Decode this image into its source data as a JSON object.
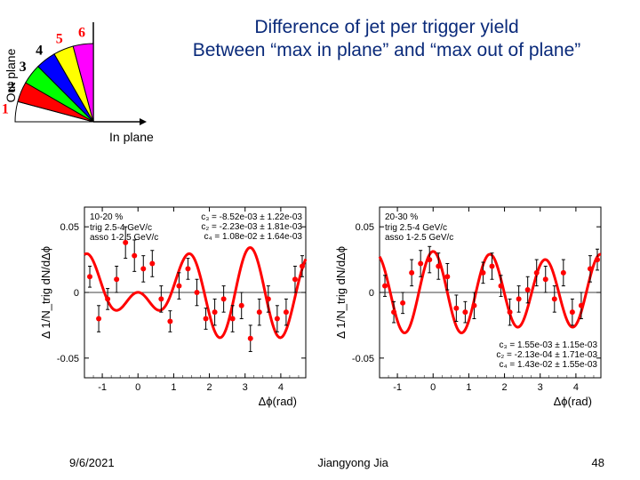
{
  "title": {
    "line1": "Difference of jet per trigger yield",
    "line2": "Between “max in plane” and “max out of plane”",
    "color": "#0a2a7a",
    "fontsize": 21
  },
  "footer": {
    "date": "9/6/2021",
    "author": "Jiangyong Jia",
    "page": "48"
  },
  "pie": {
    "y_label": "Out plane",
    "x_label": "In plane",
    "slices": [
      {
        "num": "1",
        "color": "#ffffff",
        "num_color": "#ff0000",
        "angle_start": 0,
        "angle_end": 15
      },
      {
        "num": "2",
        "color": "#ff0000",
        "num_color": "#000000",
        "angle_start": 15,
        "angle_end": 30
      },
      {
        "num": "3",
        "color": "#00ff00",
        "num_color": "#000000",
        "angle_start": 30,
        "angle_end": 45
      },
      {
        "num": "4",
        "color": "#0000ff",
        "num_color": "#000000",
        "angle_start": 45,
        "angle_end": 60
      },
      {
        "num": "5",
        "color": "#ffff00",
        "num_color": "#ff0000",
        "angle_start": 60,
        "angle_end": 75
      },
      {
        "num": "6",
        "color": "#ff00ff",
        "num_color": "#ff0000",
        "angle_start": 75,
        "angle_end": 90
      }
    ]
  },
  "chart_defaults": {
    "xlim": [
      -1.5,
      4.7
    ],
    "ylim": [
      -0.065,
      0.065
    ],
    "xticks": [
      -1,
      0,
      1,
      2,
      3,
      4
    ],
    "yticks": [
      -0.05,
      0,
      0.05
    ],
    "xlabel_tex": "Δϕ(rad)",
    "ylabel_tex": "Δ 1/N_trig dN/dΔϕ",
    "plot_bg": "#ffffff",
    "axis_color": "#000000",
    "marker_color": "#ff0000",
    "marker_radius": 3,
    "error_color": "#000000",
    "line_color": "#ff0000",
    "line_width": 3,
    "tick_fontsize": 11,
    "label_fontsize": 13
  },
  "chart_left": {
    "header_left": "10-20 %",
    "header_lines": [
      "trig 2.5-4 GeV/c",
      "asso 1-2.5 GeV/c"
    ],
    "fit_lines": [
      "c₃ = -8.52e-03 ± 1.22e-03",
      "c₂ = -2.23e-03 ± 1.81e-03",
      "c₄ = 1.08e-02 ± 1.64e-03"
    ],
    "points": [
      {
        "x": -1.35,
        "y": 0.012,
        "e": 0.008
      },
      {
        "x": -1.1,
        "y": -0.02,
        "e": 0.01
      },
      {
        "x": -0.85,
        "y": -0.005,
        "e": 0.008
      },
      {
        "x": -0.6,
        "y": 0.01,
        "e": 0.01
      },
      {
        "x": -0.35,
        "y": 0.038,
        "e": 0.012
      },
      {
        "x": -0.1,
        "y": 0.028,
        "e": 0.012
      },
      {
        "x": 0.15,
        "y": 0.018,
        "e": 0.01
      },
      {
        "x": 0.4,
        "y": 0.022,
        "e": 0.01
      },
      {
        "x": 0.65,
        "y": -0.005,
        "e": 0.01
      },
      {
        "x": 0.9,
        "y": -0.022,
        "e": 0.008
      },
      {
        "x": 1.15,
        "y": 0.005,
        "e": 0.01
      },
      {
        "x": 1.4,
        "y": 0.018,
        "e": 0.008
      },
      {
        "x": 1.65,
        "y": 0.0,
        "e": 0.01
      },
      {
        "x": 1.9,
        "y": -0.02,
        "e": 0.008
      },
      {
        "x": 2.15,
        "y": -0.015,
        "e": 0.01
      },
      {
        "x": 2.4,
        "y": -0.005,
        "e": 0.01
      },
      {
        "x": 2.65,
        "y": -0.02,
        "e": 0.01
      },
      {
        "x": 2.9,
        "y": -0.01,
        "e": 0.01
      },
      {
        "x": 3.15,
        "y": -0.035,
        "e": 0.01
      },
      {
        "x": 3.4,
        "y": -0.015,
        "e": 0.01
      },
      {
        "x": 3.65,
        "y": -0.005,
        "e": 0.01
      },
      {
        "x": 3.9,
        "y": -0.02,
        "e": 0.01
      },
      {
        "x": 4.15,
        "y": -0.015,
        "e": 0.01
      },
      {
        "x": 4.4,
        "y": 0.01,
        "e": 0.01
      },
      {
        "x": 4.6,
        "y": 0.02,
        "e": 0.008
      }
    ],
    "curve_type": "fourier",
    "curve_coef": {
      "c2": -0.00223,
      "c3": -0.00852,
      "c4": 0.0108,
      "amp": 2.0
    }
  },
  "chart_right": {
    "header_left": "20-30 %",
    "header_lines": [
      "trig 2.5-4 GeV/c",
      "asso 1-2.5 GeV/c"
    ],
    "fit_lines": [
      "c₃ = 1.55e-03 ± 1.15e-03",
      "c₂ = -2.13e-04 ± 1.71e-03",
      "c₄ = 1.43e-02 ± 1.55e-03"
    ],
    "points": [
      {
        "x": -1.35,
        "y": 0.005,
        "e": 0.008
      },
      {
        "x": -1.1,
        "y": -0.015,
        "e": 0.008
      },
      {
        "x": -0.85,
        "y": -0.008,
        "e": 0.008
      },
      {
        "x": -0.6,
        "y": 0.015,
        "e": 0.01
      },
      {
        "x": -0.35,
        "y": 0.022,
        "e": 0.01
      },
      {
        "x": -0.1,
        "y": 0.025,
        "e": 0.01
      },
      {
        "x": 0.15,
        "y": 0.02,
        "e": 0.01
      },
      {
        "x": 0.4,
        "y": 0.012,
        "e": 0.01
      },
      {
        "x": 0.65,
        "y": -0.012,
        "e": 0.01
      },
      {
        "x": 0.9,
        "y": -0.015,
        "e": 0.008
      },
      {
        "x": 1.15,
        "y": -0.01,
        "e": 0.01
      },
      {
        "x": 1.4,
        "y": 0.015,
        "e": 0.008
      },
      {
        "x": 1.65,
        "y": 0.02,
        "e": 0.01
      },
      {
        "x": 1.9,
        "y": 0.005,
        "e": 0.008
      },
      {
        "x": 2.15,
        "y": -0.015,
        "e": 0.01
      },
      {
        "x": 2.4,
        "y": -0.005,
        "e": 0.01
      },
      {
        "x": 2.65,
        "y": 0.002,
        "e": 0.01
      },
      {
        "x": 2.9,
        "y": 0.015,
        "e": 0.01
      },
      {
        "x": 3.15,
        "y": 0.01,
        "e": 0.01
      },
      {
        "x": 3.4,
        "y": -0.005,
        "e": 0.01
      },
      {
        "x": 3.65,
        "y": 0.015,
        "e": 0.01
      },
      {
        "x": 3.9,
        "y": -0.015,
        "e": 0.01
      },
      {
        "x": 4.15,
        "y": -0.01,
        "e": 0.01
      },
      {
        "x": 4.4,
        "y": 0.018,
        "e": 0.01
      },
      {
        "x": 4.6,
        "y": 0.025,
        "e": 0.008
      }
    ],
    "curve_type": "fourier",
    "curve_coef": {
      "c2": -0.000213,
      "c3": 0.00155,
      "c4": 0.0143,
      "amp": 2.0
    }
  }
}
